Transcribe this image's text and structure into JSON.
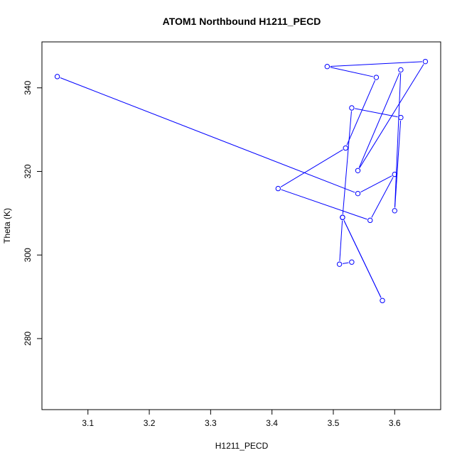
{
  "chart_data": {
    "type": "line",
    "title": "ATOM1 Northbound H1211_PECD",
    "xlabel": "H1211_PECD",
    "ylabel": "Theta (K)",
    "xlim": [
      3.025,
      3.675
    ],
    "ylim": [
      263,
      351
    ],
    "x_ticks": [
      3.1,
      3.2,
      3.3,
      3.4,
      3.5,
      3.6
    ],
    "x_tick_labels": [
      "3.1",
      "3.2",
      "3.3",
      "3.4",
      "3.5",
      "3.6"
    ],
    "y_ticks": [
      280,
      300,
      320,
      340
    ],
    "y_tick_labels": [
      "280",
      "300",
      "320",
      "340"
    ],
    "grid": false,
    "series": [
      {
        "color": "#0000ff",
        "marker": "open-circle",
        "points": [
          {
            "x": 3.05,
            "y": 342.7
          },
          {
            "x": 3.54,
            "y": 314.7
          },
          {
            "x": 3.6,
            "y": 319.3
          },
          {
            "x": 3.56,
            "y": 308.3
          },
          {
            "x": 3.41,
            "y": 315.9
          },
          {
            "x": 3.52,
            "y": 325.6
          },
          {
            "x": 3.57,
            "y": 342.5
          },
          {
            "x": 3.49,
            "y": 345.1
          },
          {
            "x": 3.65,
            "y": 346.3
          },
          {
            "x": 3.54,
            "y": 320.2
          },
          {
            "x": 3.61,
            "y": 344.3
          },
          {
            "x": 3.6,
            "y": 310.6
          },
          {
            "x": 3.61,
            "y": 332.9
          },
          {
            "x": 3.53,
            "y": 335.2
          },
          {
            "x": 3.515,
            "y": 309.0
          },
          {
            "x": 3.58,
            "y": 289.1
          },
          {
            "x": 3.515,
            "y": 309.0
          },
          {
            "x": 3.51,
            "y": 297.8
          },
          {
            "x": 3.53,
            "y": 298.3
          }
        ]
      }
    ]
  }
}
